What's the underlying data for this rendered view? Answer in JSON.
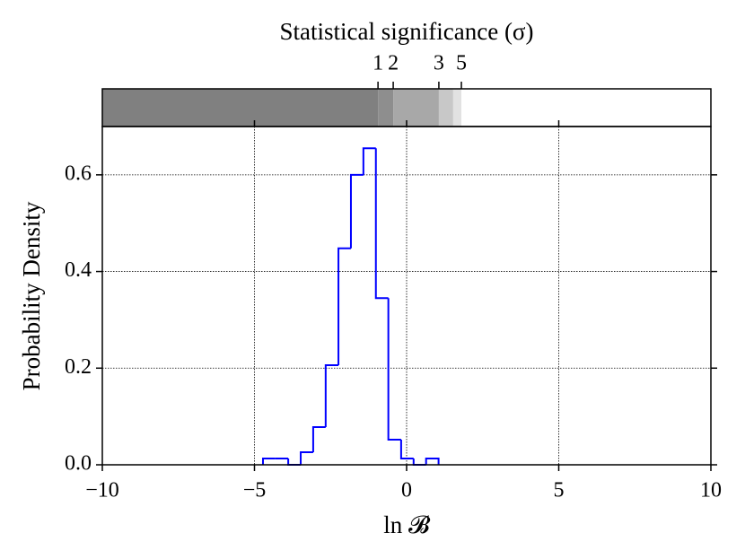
{
  "chart_data": {
    "type": "histogram",
    "xlabel": "ln 𝓑",
    "ylabel": "Probability Density",
    "bins": [
      -4.72,
      -4.31,
      -3.89,
      -3.48,
      -3.07,
      -2.66,
      -2.24,
      -1.83,
      -1.42,
      -1.01,
      -0.6,
      -0.18,
      0.23,
      0.64,
      1.05
    ],
    "values": [
      0.013,
      0.013,
      0,
      0.026,
      0.078,
      0.206,
      0.448,
      0.6,
      0.655,
      0.345,
      0.052,
      0.013,
      0,
      0.013
    ],
    "color": "#0000ff",
    "xlim": [
      -10,
      10
    ],
    "ylim": [
      0,
      0.7
    ],
    "xticks": [
      {
        "value": -10,
        "label": "−10"
      },
      {
        "value": -5,
        "label": "−5"
      },
      0,
      5,
      10
    ],
    "yticks": [
      {
        "value": 0,
        "label": "0.0"
      },
      0.2,
      0.4,
      0.6
    ],
    "grid": true,
    "significance": {
      "title": "Statistical significance (σ)",
      "ticks": [
        {
          "value": -0.94,
          "label": "1"
        },
        {
          "value": -0.44,
          "label": "2"
        },
        {
          "value": 1.06,
          "label": "3"
        },
        {
          "value": 1.8,
          "label": "5"
        }
      ],
      "band_edges": [
        -0.94,
        -0.44,
        1.06,
        1.53,
        1.8
      ],
      "band_colors": [
        "#808080",
        "#8e8e8e",
        "#a8a8a8",
        "#c8c8c8",
        "#e2e2e2",
        "#ffffff"
      ]
    }
  }
}
